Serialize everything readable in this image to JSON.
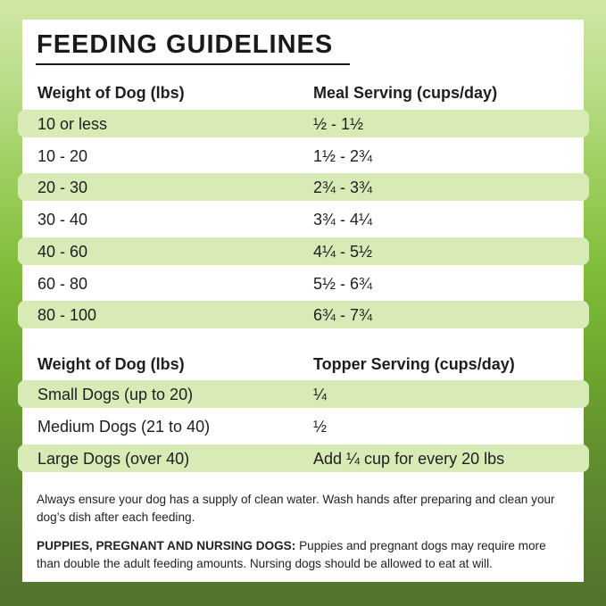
{
  "title": "FEEDING GUIDELINES",
  "tables": [
    {
      "header": [
        "Weight of Dog (lbs)",
        "Meal Serving (cups/day)"
      ],
      "rows": [
        [
          "10 or less",
          "½ - 1½"
        ],
        [
          "10 - 20",
          "1½ - 2¾"
        ],
        [
          "20 - 30",
          "2¾ - 3¾"
        ],
        [
          "30 - 40",
          "3¾ - 4¼"
        ],
        [
          "40 - 60",
          "4¼ - 5½"
        ],
        [
          "60 - 80",
          "5½ - 6¾"
        ],
        [
          "80 - 100",
          "6¾ - 7¾"
        ]
      ]
    },
    {
      "header": [
        "Weight of Dog (lbs)",
        "Topper Serving (cups/day)"
      ],
      "rows": [
        [
          "Small Dogs (up to 20)",
          "¼"
        ],
        [
          "Medium Dogs (21 to 40)",
          "½"
        ],
        [
          "Large Dogs (over 40)",
          "Add ¼ cup for every 20 lbs"
        ]
      ]
    }
  ],
  "notes": [
    {
      "text": "Always ensure your dog has a supply of clean water. Wash hands after preparing and clean your dog’s dish after each feeding."
    },
    {
      "label": "PUPPIES, PREGNANT AND NURSING DOGS:",
      "text": "Puppies and pregnant dogs may require more than double the adult feeding amounts. Nursing dogs should be allowed to eat at will."
    }
  ]
}
